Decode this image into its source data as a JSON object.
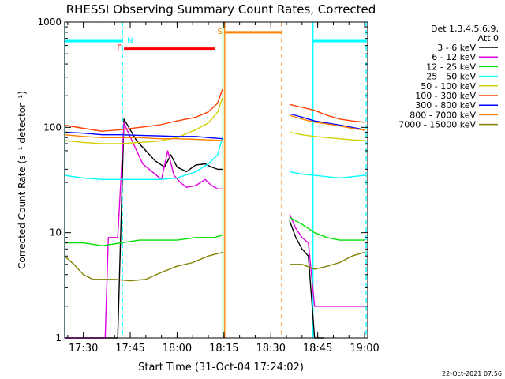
{
  "chart_data": {
    "type": "line",
    "title": "RHESSI Observing Summary Count Rates, Corrected",
    "xlabel": "Start Time (31-Oct-04 17:24:02)",
    "ylabel": "Corrected Count Rate (s⁻¹ detector⁻¹)",
    "y_scale": "log",
    "ylim": [
      1,
      1000
    ],
    "xlim": [
      "17:24:02",
      "19:01"
    ],
    "x_ticks": [
      "17:30",
      "17:45",
      "18:00",
      "18:15",
      "18:30",
      "18:45",
      "19:00"
    ],
    "y_ticks": [
      "1",
      "10",
      "100",
      "1000"
    ],
    "footer": "22-Oct-2021 07:56",
    "legend": {
      "position": "top-right",
      "header_line1": "Det 1,3,4,5,6,9,",
      "header_line2": "Att 0"
    },
    "series": [
      {
        "name": "3 - 6 keV",
        "color": "#000000",
        "points": [
          [
            "17:24",
            1.0
          ],
          [
            "17:41",
            1.0
          ],
          [
            "17:43",
            120
          ],
          [
            "17:47",
            75
          ],
          [
            "17:50",
            60
          ],
          [
            "17:53",
            48
          ],
          [
            "17:56",
            42
          ],
          [
            "17:58",
            55
          ],
          [
            "18:00",
            42
          ],
          [
            "18:03",
            38
          ],
          [
            "18:06",
            44
          ],
          [
            "18:09",
            45
          ],
          [
            "18:11",
            42
          ],
          [
            "18:13",
            40
          ],
          [
            "18:14:30",
            40
          ],
          [
            "18:15",
            null
          ],
          [
            "18:36",
            null
          ],
          [
            "18:36",
            13
          ],
          [
            "18:38",
            9
          ],
          [
            "18:40",
            7
          ],
          [
            "18:42",
            6
          ],
          [
            "18:44",
            1.0
          ],
          [
            "18:47",
            1.0
          ]
        ]
      },
      {
        "name": "6 - 12 keV",
        "color": "#e000e0",
        "points": [
          [
            "17:24",
            1.0
          ],
          [
            "17:37",
            1.0
          ],
          [
            "17:38",
            9
          ],
          [
            "17:41",
            9
          ],
          [
            "17:43",
            110
          ],
          [
            "17:46",
            70
          ],
          [
            "17:49",
            45
          ],
          [
            "17:52",
            38
          ],
          [
            "17:55",
            32
          ],
          [
            "17:57",
            60
          ],
          [
            "17:59",
            35
          ],
          [
            "18:01",
            30
          ],
          [
            "18:03",
            27
          ],
          [
            "18:06",
            28
          ],
          [
            "18:09",
            32
          ],
          [
            "18:11",
            28
          ],
          [
            "18:13",
            26
          ],
          [
            "18:14:30",
            26
          ],
          [
            "18:15",
            null
          ],
          [
            "18:36",
            null
          ],
          [
            "18:36",
            15
          ],
          [
            "18:38",
            11
          ],
          [
            "18:40",
            9
          ],
          [
            "18:42",
            8
          ],
          [
            "18:44",
            2.0
          ],
          [
            "19:00",
            2.0
          ]
        ]
      },
      {
        "name": "12 - 25 keV",
        "color": "#00e000",
        "points": [
          [
            "17:24",
            8
          ],
          [
            "17:30",
            8
          ],
          [
            "17:36",
            7.5
          ],
          [
            "17:42",
            8
          ],
          [
            "17:48",
            8.5
          ],
          [
            "17:54",
            8.5
          ],
          [
            "18:00",
            8.5
          ],
          [
            "18:06",
            9
          ],
          [
            "18:12",
            9
          ],
          [
            "18:14:30",
            9.5
          ],
          [
            "18:15",
            null
          ],
          [
            "18:36",
            null
          ],
          [
            "18:36",
            14
          ],
          [
            "18:40",
            12
          ],
          [
            "18:44",
            10
          ],
          [
            "18:48",
            9
          ],
          [
            "18:52",
            8.5
          ],
          [
            "18:56",
            8.5
          ],
          [
            "19:00",
            8.5
          ]
        ]
      },
      {
        "name": "25 - 50 keV",
        "color": "#00ffff",
        "points": [
          [
            "17:24",
            35
          ],
          [
            "17:30",
            33
          ],
          [
            "17:36",
            32
          ],
          [
            "17:42",
            32
          ],
          [
            "17:48",
            32
          ],
          [
            "17:54",
            32
          ],
          [
            "18:00",
            33
          ],
          [
            "18:06",
            38
          ],
          [
            "18:10",
            45
          ],
          [
            "18:13",
            55
          ],
          [
            "18:14:30",
            80
          ],
          [
            "18:15",
            null
          ],
          [
            "18:36",
            null
          ],
          [
            "18:36",
            38
          ],
          [
            "18:40",
            36
          ],
          [
            "18:44",
            35
          ],
          [
            "18:48",
            34
          ],
          [
            "18:52",
            33
          ],
          [
            "18:56",
            34
          ],
          [
            "19:00",
            35
          ]
        ]
      },
      {
        "name": "50 - 100 keV",
        "color": "#d0d000",
        "points": [
          [
            "17:24",
            75
          ],
          [
            "17:30",
            72
          ],
          [
            "17:36",
            70
          ],
          [
            "17:42",
            70
          ],
          [
            "17:48",
            72
          ],
          [
            "17:54",
            74
          ],
          [
            "18:00",
            80
          ],
          [
            "18:06",
            95
          ],
          [
            "18:10",
            110
          ],
          [
            "18:13",
            140
          ],
          [
            "18:14:30",
            190
          ],
          [
            "18:15",
            null
          ],
          [
            "18:36",
            null
          ],
          [
            "18:36",
            90
          ],
          [
            "18:40",
            85
          ],
          [
            "18:44",
            82
          ],
          [
            "18:48",
            80
          ],
          [
            "18:52",
            78
          ],
          [
            "18:56",
            76
          ],
          [
            "19:00",
            75
          ]
        ]
      },
      {
        "name": "100 - 300 keV",
        "color": "#ff4000",
        "points": [
          [
            "17:24",
            105
          ],
          [
            "17:30",
            98
          ],
          [
            "17:36",
            92
          ],
          [
            "17:42",
            95
          ],
          [
            "17:48",
            100
          ],
          [
            "17:54",
            105
          ],
          [
            "18:00",
            115
          ],
          [
            "18:06",
            125
          ],
          [
            "18:10",
            140
          ],
          [
            "18:13",
            170
          ],
          [
            "18:14:30",
            230
          ],
          [
            "18:15",
            null
          ],
          [
            "18:36",
            null
          ],
          [
            "18:36",
            165
          ],
          [
            "18:40",
            155
          ],
          [
            "18:44",
            145
          ],
          [
            "18:48",
            130
          ],
          [
            "18:52",
            120
          ],
          [
            "18:56",
            115
          ],
          [
            "19:00",
            112
          ]
        ]
      },
      {
        "name": "300 - 800 keV",
        "color": "#0000ff",
        "points": [
          [
            "17:24",
            90
          ],
          [
            "17:30",
            88
          ],
          [
            "17:36",
            85
          ],
          [
            "17:42",
            85
          ],
          [
            "17:48",
            84
          ],
          [
            "17:54",
            83
          ],
          [
            "18:00",
            82
          ],
          [
            "18:06",
            82
          ],
          [
            "18:10",
            80
          ],
          [
            "18:14:30",
            78
          ],
          [
            "18:15",
            null
          ],
          [
            "18:36",
            null
          ],
          [
            "18:36",
            135
          ],
          [
            "18:40",
            125
          ],
          [
            "18:44",
            115
          ],
          [
            "18:48",
            110
          ],
          [
            "18:52",
            105
          ],
          [
            "18:56",
            100
          ],
          [
            "19:00",
            95
          ]
        ]
      },
      {
        "name": "800 - 7000 keV",
        "color": "#ff8000",
        "points": [
          [
            "17:24",
            85
          ],
          [
            "17:30",
            82
          ],
          [
            "17:36",
            80
          ],
          [
            "17:42",
            80
          ],
          [
            "17:48",
            80
          ],
          [
            "17:54",
            78
          ],
          [
            "18:00",
            78
          ],
          [
            "18:06",
            77
          ],
          [
            "18:10",
            76
          ],
          [
            "18:14:30",
            75
          ],
          [
            "18:15",
            null
          ],
          [
            "18:36",
            null
          ],
          [
            "18:36",
            130
          ],
          [
            "18:40",
            120
          ],
          [
            "18:44",
            112
          ],
          [
            "18:48",
            108
          ],
          [
            "18:52",
            103
          ],
          [
            "18:56",
            98
          ],
          [
            "19:00",
            94
          ]
        ]
      },
      {
        "name": "7000 - 15000 keV",
        "color": "#808000",
        "points": [
          [
            "17:24",
            6
          ],
          [
            "17:27",
            5
          ],
          [
            "17:30",
            4
          ],
          [
            "17:33",
            3.6
          ],
          [
            "17:36",
            3.6
          ],
          [
            "17:40",
            3.6
          ],
          [
            "17:45",
            3.5
          ],
          [
            "17:50",
            3.6
          ],
          [
            "17:55",
            4.2
          ],
          [
            "18:00",
            4.8
          ],
          [
            "18:05",
            5.2
          ],
          [
            "18:10",
            6
          ],
          [
            "18:14:30",
            6.5
          ],
          [
            "18:15",
            null
          ],
          [
            "18:36",
            null
          ],
          [
            "18:36",
            5
          ],
          [
            "18:40",
            5
          ],
          [
            "18:44",
            4.5
          ],
          [
            "18:48",
            4.8
          ],
          [
            "18:52",
            5.2
          ],
          [
            "18:56",
            6
          ],
          [
            "19:00",
            6.5
          ]
        ]
      }
    ],
    "annotations": [
      {
        "type": "vline",
        "x": "17:24:02",
        "color": "#00ffff",
        "style": "solid"
      },
      {
        "type": "vline",
        "x": "17:42:30",
        "color": "#00ffff",
        "style": "dashed"
      },
      {
        "type": "vline",
        "x": "18:43:30",
        "color": "#00ffff",
        "style": "solid"
      },
      {
        "type": "vline",
        "x": "19:00:30",
        "color": "#00ffff",
        "style": "dashed"
      },
      {
        "type": "vline",
        "x": "18:14:40",
        "color": "#00e000",
        "style": "solid"
      },
      {
        "type": "vline",
        "x": "18:15:15",
        "color": "#ff8000",
        "style": "solid"
      },
      {
        "type": "vline",
        "x": "18:33:30",
        "color": "#ff8000",
        "style": "dashed"
      },
      {
        "type": "bar",
        "label": "",
        "x0": "17:24:02",
        "x1": "17:42:30",
        "y": 660,
        "color": "#00ffff"
      },
      {
        "type": "bar",
        "label": "",
        "x0": "18:43:30",
        "x1": "19:00:30",
        "y": 660,
        "color": "#00ffff"
      },
      {
        "type": "bar",
        "label": "F",
        "x0": "17:43",
        "x1": "18:12",
        "y": 560,
        "color": "#ff0000"
      },
      {
        "type": "bar",
        "label": "S",
        "x0": "18:15:15",
        "x1": "18:33:30",
        "y": 800,
        "color": "#ff8000"
      },
      {
        "type": "label",
        "text": "N",
        "x": "17:44",
        "y": 680,
        "color": "#00ffff"
      }
    ]
  }
}
